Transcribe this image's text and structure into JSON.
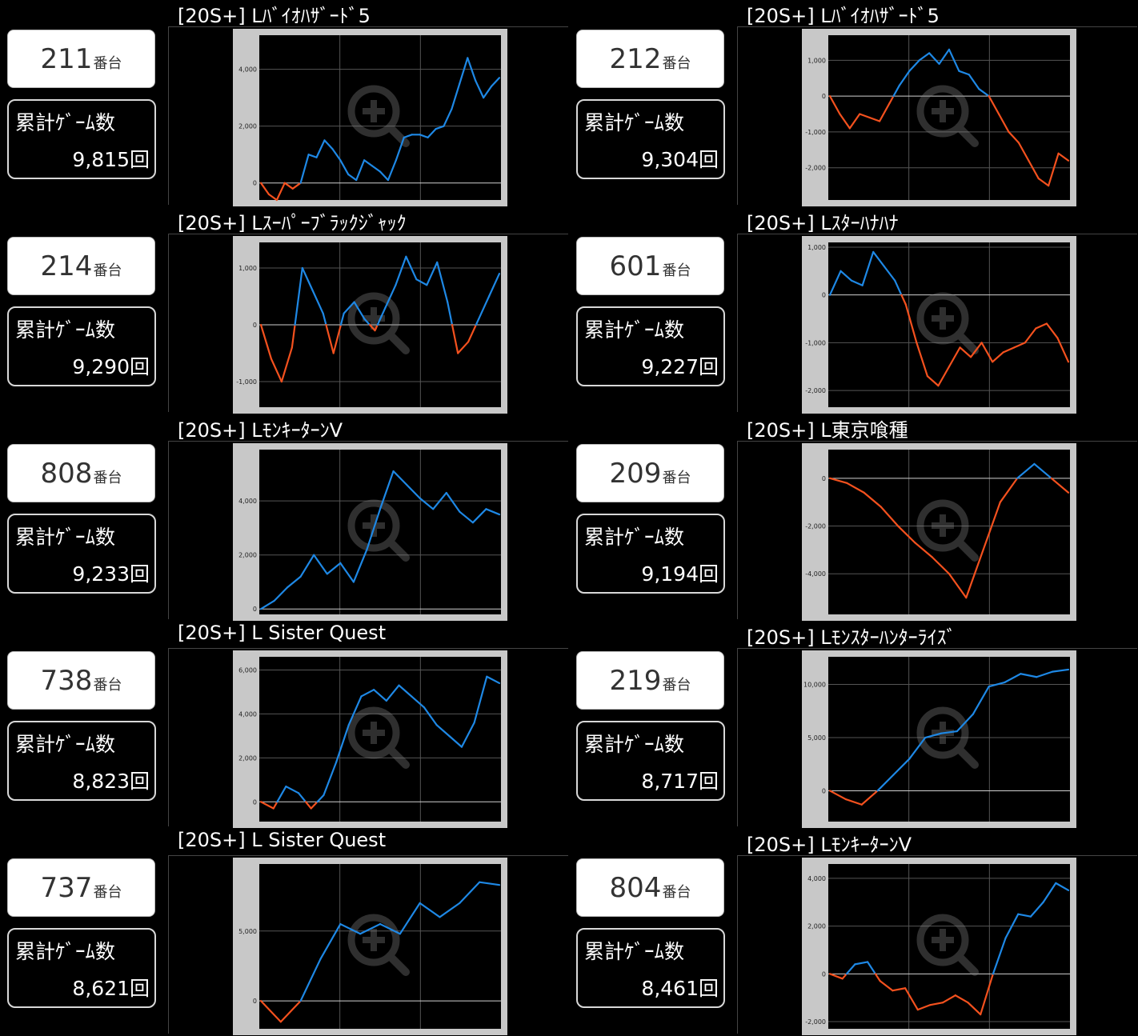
{
  "units": [
    {
      "machine": "211",
      "suffix": "番台",
      "games_label": "累計ｹﾞｰﾑ数",
      "games": "9,815回",
      "model": "[20S+] Lﾊﾞｲｵﾊｻﾞｰﾄﾞ5",
      "chart": {
        "type": "line",
        "yticks": [
          {
            "v": 0,
            "label": "0"
          },
          {
            "v": 2000,
            "label": "2,000"
          },
          {
            "v": 4000,
            "label": "4,000"
          }
        ],
        "ylim": [
          -600,
          5200
        ],
        "xcount": 51,
        "values": [
          0,
          -400,
          -600,
          0,
          -200,
          0,
          1000,
          900,
          1500,
          1200,
          800,
          300,
          100,
          800,
          600,
          400,
          100,
          800,
          1600,
          1700,
          1700,
          1600,
          1900,
          2000,
          2600,
          3500,
          4400,
          3600,
          3000,
          3400,
          3700
        ]
      }
    },
    {
      "machine": "212",
      "suffix": "番台",
      "games_label": "累計ｹﾞｰﾑ数",
      "games": "9,304回",
      "model": "[20S+] Lﾊﾞｲｵﾊｻﾞｰﾄﾞ5",
      "chart": {
        "type": "line",
        "yticks": [
          {
            "v": 1000,
            "label": "1,000"
          },
          {
            "v": 0,
            "label": "0"
          },
          {
            "v": -1000,
            "label": "-1,000"
          },
          {
            "v": -2000,
            "label": "-2,000"
          }
        ],
        "ylim": [
          -2900,
          1700
        ],
        "xcount": 51,
        "values": [
          0,
          -500,
          -900,
          -500,
          -600,
          -700,
          -200,
          300,
          700,
          1000,
          1200,
          900,
          1300,
          700,
          600,
          200,
          0,
          -500,
          -1000,
          -1300,
          -1800,
          -2300,
          -2500,
          -1600,
          -1800
        ]
      }
    },
    {
      "machine": "214",
      "suffix": "番台",
      "games_label": "累計ｹﾞｰﾑ数",
      "games": "9,290回",
      "model": "[20S+] Lｽｰﾊﾟｰﾌﾞﾗｯｸｼﾞｬｯｸ",
      "chart": {
        "type": "line",
        "yticks": [
          {
            "v": 1000,
            "label": "1,000"
          },
          {
            "v": 0,
            "label": "0"
          },
          {
            "v": -1000,
            "label": "-1,000"
          }
        ],
        "ylim": [
          -1450,
          1450
        ],
        "xcount": 51,
        "values": [
          0,
          -600,
          -1000,
          -400,
          1000,
          600,
          200,
          -500,
          200,
          400,
          100,
          -100,
          300,
          700,
          1200,
          800,
          700,
          1100,
          400,
          -500,
          -300,
          100,
          500,
          900
        ]
      }
    },
    {
      "machine": "601",
      "suffix": "番台",
      "games_label": "累計ｹﾞｰﾑ数",
      "games": "9,227回",
      "model": "[20S+] Lｽﾀｰﾊﾅﾊﾅ",
      "chart": {
        "type": "line",
        "yticks": [
          {
            "v": 1000,
            "label": "1,000"
          },
          {
            "v": 0,
            "label": "0"
          },
          {
            "v": -1000,
            "label": "-1,000"
          },
          {
            "v": -2000,
            "label": "-2,000"
          }
        ],
        "ylim": [
          -2350,
          1100
        ],
        "xcount": 51,
        "values": [
          0,
          500,
          300,
          200,
          900,
          600,
          300,
          -200,
          -1000,
          -1700,
          -1900,
          -1500,
          -1100,
          -1300,
          -1000,
          -1400,
          -1200,
          -1100,
          -1000,
          -700,
          -600,
          -900,
          -1400
        ]
      }
    },
    {
      "machine": "808",
      "suffix": "番台",
      "games_label": "累計ｹﾞｰﾑ数",
      "games": "9,233回",
      "model": "[20S+] LﾓﾝｷｰﾀｰﾝⅤ",
      "chart": {
        "type": "line",
        "yticks": [
          {
            "v": 0,
            "label": "0"
          },
          {
            "v": 2000,
            "label": "2,000"
          },
          {
            "v": 4000,
            "label": "4,000"
          }
        ],
        "ylim": [
          -200,
          5900
        ],
        "xcount": 51,
        "values": [
          0,
          300,
          800,
          1200,
          2000,
          1300,
          1700,
          1000,
          2200,
          3700,
          5100,
          4600,
          4100,
          3700,
          4300,
          3600,
          3200,
          3700,
          3500
        ]
      }
    },
    {
      "machine": "209",
      "suffix": "番台",
      "games_label": "累計ｹﾞｰﾑ数",
      "games": "9,194回",
      "model": "[20S+] L東京喰種",
      "chart": {
        "type": "line",
        "yticks": [
          {
            "v": 0,
            "label": "0"
          },
          {
            "v": -2000,
            "label": "-2,000"
          },
          {
            "v": -4000,
            "label": "-4,000"
          }
        ],
        "ylim": [
          -5700,
          1200
        ],
        "xcount": 51,
        "values": [
          0,
          -200,
          -600,
          -1200,
          -2000,
          -2700,
          -3300,
          -4000,
          -5000,
          -3000,
          -1000,
          0,
          600,
          0,
          -600
        ]
      }
    },
    {
      "machine": "738",
      "suffix": "番台",
      "games_label": "累計ｹﾞｰﾑ数",
      "games": "8,823回",
      "model": "[20S+] L Sister Quest",
      "chart": {
        "type": "line",
        "yticks": [
          {
            "v": 0,
            "label": "0"
          },
          {
            "v": 2000,
            "label": "2,000"
          },
          {
            "v": 4000,
            "label": "4,000"
          },
          {
            "v": 6000,
            "label": "6,000"
          }
        ],
        "ylim": [
          -900,
          6600
        ],
        "xcount": 51,
        "values": [
          0,
          -300,
          700,
          400,
          -300,
          300,
          1800,
          3500,
          4800,
          5100,
          4600,
          5300,
          4800,
          4300,
          3500,
          3000,
          2500,
          3600,
          5700,
          5400
        ]
      }
    },
    {
      "machine": "219",
      "suffix": "番台",
      "games_label": "累計ｹﾞｰﾑ数",
      "games": "8,717回",
      "model": "[20S+] Lﾓﾝｽﾀｰﾊﾝﾀｰﾗｲｽﾞ",
      "chart": {
        "type": "line",
        "yticks": [
          {
            "v": 0,
            "label": "0"
          },
          {
            "v": 5000,
            "label": "5,000"
          },
          {
            "v": 10000,
            "label": "10,000"
          }
        ],
        "ylim": [
          -2900,
          12600
        ],
        "xcount": 51,
        "values": [
          0,
          -800,
          -1300,
          0,
          1500,
          3000,
          5000,
          5400,
          5600,
          7200,
          9800,
          10200,
          11000,
          10700,
          11200,
          11400
        ]
      }
    },
    {
      "machine": "737",
      "suffix": "番台",
      "games_label": "累計ｹﾞｰﾑ数",
      "games": "8,621回",
      "model": "[20S+] L Sister Quest",
      "chart": {
        "type": "line",
        "yticks": [
          {
            "v": 0,
            "label": "0"
          },
          {
            "v": 5000,
            "label": "5,000"
          }
        ],
        "ylim": [
          -2000,
          9800
        ],
        "xcount": 51,
        "values": [
          0,
          -1500,
          0,
          3000,
          5500,
          4800,
          5500,
          4800,
          7000,
          6000,
          7000,
          8500,
          8300
        ]
      }
    },
    {
      "machine": "804",
      "suffix": "番台",
      "games_label": "累計ｹﾞｰﾑ数",
      "games": "8,461回",
      "model": "[20S+] LﾓﾝｷｰﾀｰﾝⅤ",
      "chart": {
        "type": "line",
        "yticks": [
          {
            "v": 4000,
            "label": "4,000"
          },
          {
            "v": 2000,
            "label": "2,000"
          },
          {
            "v": 0,
            "label": "0"
          },
          {
            "v": -2000,
            "label": "-2,000"
          }
        ],
        "ylim": [
          -2300,
          4600
        ],
        "xcount": 51,
        "values": [
          0,
          -200,
          400,
          500,
          -300,
          -700,
          -600,
          -1500,
          -1300,
          -1200,
          -900,
          -1200,
          -1700,
          0,
          1500,
          2500,
          2400,
          3000,
          3800,
          3500
        ]
      }
    }
  ],
  "colors": {
    "positive": "#1e88e5",
    "negative": "#f4511e",
    "plot_bg": "#000000",
    "frame": "#c8c8c8",
    "grid": "#555555",
    "zero": "#d0d0d0"
  },
  "icon": "zoom-in-icon"
}
